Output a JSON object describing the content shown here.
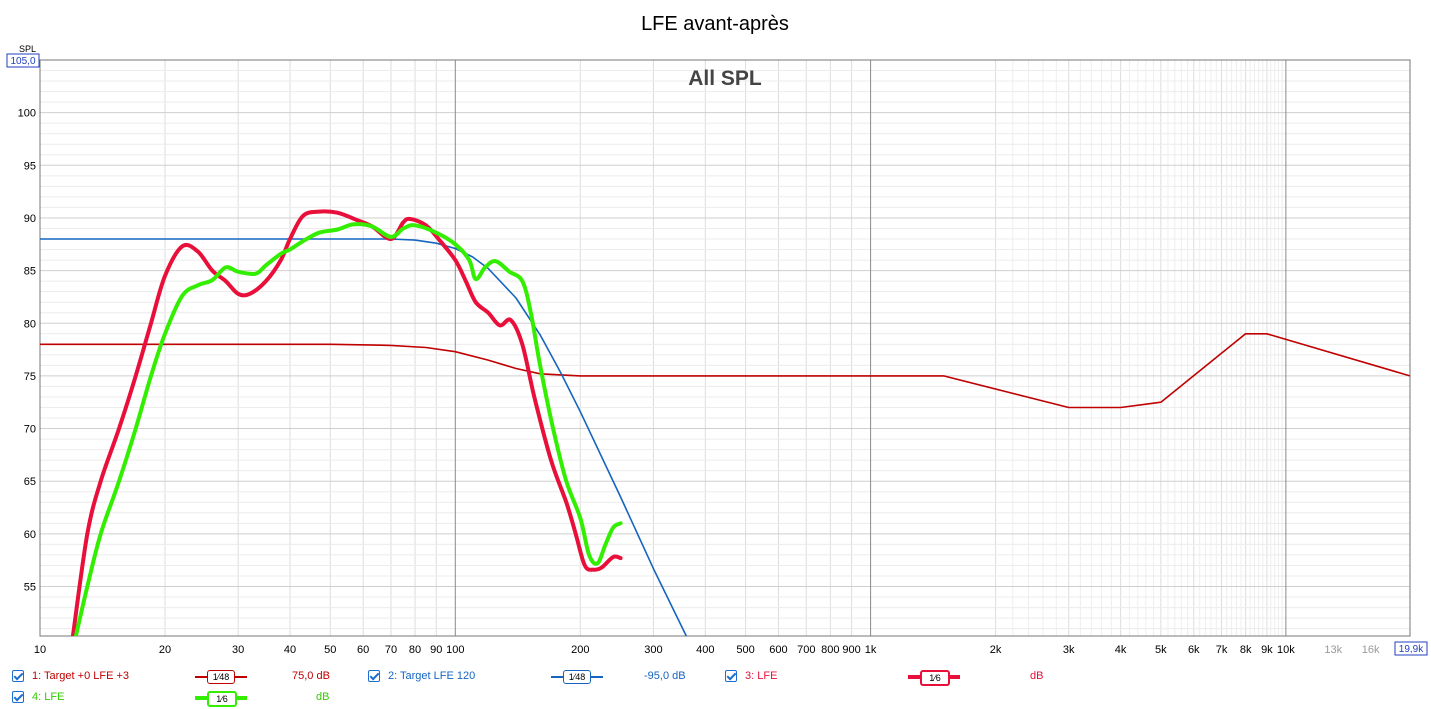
{
  "window": {
    "title": "LFE avant-après",
    "plot_title": "All SPL"
  },
  "axes": {
    "y_axis_label": "SPL",
    "y_top_value": "105,0",
    "x_right_value": "19,9k",
    "y_ticks": [
      "100",
      "95",
      "90",
      "85",
      "80",
      "75",
      "70",
      "65",
      "60",
      "55"
    ],
    "x_ticks": [
      "10",
      "20",
      "30",
      "40",
      "50",
      "60",
      "70",
      "80",
      "90",
      "100",
      "200",
      "300",
      "400",
      "500",
      "600",
      "700",
      "800",
      "900",
      "1k",
      "2k",
      "3k",
      "4k",
      "5k",
      "6k",
      "7k",
      "8k",
      "9k",
      "10k",
      "13k",
      "16k"
    ]
  },
  "legend": [
    {
      "label": "1: Target +0 LFE +3",
      "smoothing": "1⁄48",
      "value": "75,0 dB",
      "color": "#c00000",
      "checked": true
    },
    {
      "label": "2: Target LFE 120",
      "smoothing": "1⁄48",
      "value": "-95,0 dB",
      "color": "#1565c0",
      "checked": true
    },
    {
      "label": "3: LFE",
      "smoothing": "1⁄6",
      "value": "dB",
      "color": "#e8103a",
      "checked": true
    },
    {
      "label": "4: LFE",
      "smoothing": "1⁄6",
      "value": "dB",
      "color": "#33ee00",
      "checked": true
    }
  ],
  "chart_data": {
    "type": "line",
    "title": "LFE avant-après",
    "subtitle": "All SPL",
    "xlabel": "",
    "ylabel": "SPL",
    "xscale": "log",
    "xlim": [
      10,
      19900
    ],
    "ylim": [
      50.3,
      105
    ],
    "grid": true,
    "legend_position": "bottom",
    "series": [
      {
        "name": "1: Target +0 LFE +3",
        "color": "#c00000",
        "width": 1.6,
        "points": [
          [
            10,
            78
          ],
          [
            50,
            78
          ],
          [
            70,
            77.9
          ],
          [
            85,
            77.7
          ],
          [
            100,
            77.3
          ],
          [
            120,
            76.5
          ],
          [
            140,
            75.7
          ],
          [
            160,
            75.2
          ],
          [
            200,
            75
          ],
          [
            1500,
            75
          ],
          [
            3000,
            72
          ],
          [
            4000,
            72
          ],
          [
            5000,
            72.5
          ],
          [
            8000,
            79
          ],
          [
            9000,
            79
          ],
          [
            19900,
            75
          ]
        ]
      },
      {
        "name": "2: Target LFE 120",
        "color": "#1565c0",
        "width": 1.6,
        "points": [
          [
            10,
            88
          ],
          [
            50,
            88
          ],
          [
            70,
            88
          ],
          [
            80,
            87.9
          ],
          [
            90,
            87.6
          ],
          [
            100,
            87.1
          ],
          [
            110,
            86.3
          ],
          [
            120,
            85.2
          ],
          [
            140,
            82.4
          ],
          [
            160,
            78.9
          ],
          [
            180,
            75.2
          ],
          [
            200,
            71.6
          ],
          [
            250,
            63.5
          ],
          [
            300,
            56.7
          ],
          [
            360,
            50.3
          ]
        ]
      },
      {
        "name": "3: LFE",
        "color": "#e8103a",
        "width": 4,
        "points": [
          [
            12,
            50.3
          ],
          [
            13,
            60
          ],
          [
            14,
            65
          ],
          [
            15.5,
            70
          ],
          [
            17,
            75
          ],
          [
            18.5,
            80
          ],
          [
            20,
            84.5
          ],
          [
            22,
            87.3
          ],
          [
            24,
            86.8
          ],
          [
            26,
            85
          ],
          [
            28,
            84
          ],
          [
            30,
            82.8
          ],
          [
            32,
            82.8
          ],
          [
            35,
            84
          ],
          [
            38,
            86
          ],
          [
            40,
            88
          ],
          [
            43,
            90.2
          ],
          [
            47,
            90.6
          ],
          [
            52,
            90.5
          ],
          [
            58,
            89.8
          ],
          [
            63,
            89.2
          ],
          [
            70,
            88
          ],
          [
            75,
            89.6
          ],
          [
            78,
            89.9
          ],
          [
            85,
            89.3
          ],
          [
            92,
            87.8
          ],
          [
            100,
            86
          ],
          [
            106,
            84
          ],
          [
            112,
            82
          ],
          [
            120,
            81
          ],
          [
            128,
            79.8
          ],
          [
            136,
            80.3
          ],
          [
            145,
            78
          ],
          [
            155,
            73
          ],
          [
            170,
            67
          ],
          [
            185,
            63
          ],
          [
            195,
            60
          ],
          [
            205,
            57
          ],
          [
            215,
            56.6
          ],
          [
            225,
            56.8
          ],
          [
            240,
            57.8
          ],
          [
            250,
            57.7
          ]
        ]
      },
      {
        "name": "4: LFE",
        "color": "#33ee00",
        "width": 4,
        "points": [
          [
            12.2,
            50.3
          ],
          [
            13,
            55
          ],
          [
            14,
            60
          ],
          [
            15.5,
            65
          ],
          [
            17,
            70
          ],
          [
            18.5,
            75
          ],
          [
            20,
            79
          ],
          [
            22,
            82.6
          ],
          [
            24,
            83.6
          ],
          [
            26,
            84.1
          ],
          [
            28,
            85.3
          ],
          [
            30,
            84.9
          ],
          [
            33,
            84.7
          ],
          [
            35,
            85.5
          ],
          [
            38,
            86.6
          ],
          [
            40,
            87
          ],
          [
            43,
            87.8
          ],
          [
            47,
            88.6
          ],
          [
            52,
            88.9
          ],
          [
            57,
            89.4
          ],
          [
            63,
            89.2
          ],
          [
            70,
            88.2
          ],
          [
            75,
            89
          ],
          [
            80,
            89.3
          ],
          [
            90,
            88.6
          ],
          [
            100,
            87.5
          ],
          [
            108,
            86
          ],
          [
            112,
            84.2
          ],
          [
            118,
            85.3
          ],
          [
            125,
            85.9
          ],
          [
            135,
            84.9
          ],
          [
            145,
            84
          ],
          [
            152,
            81
          ],
          [
            160,
            76
          ],
          [
            172,
            70
          ],
          [
            185,
            65
          ],
          [
            200,
            61.5
          ],
          [
            210,
            58
          ],
          [
            220,
            57.2
          ],
          [
            230,
            59
          ],
          [
            240,
            60.6
          ],
          [
            250,
            61
          ]
        ]
      }
    ]
  }
}
